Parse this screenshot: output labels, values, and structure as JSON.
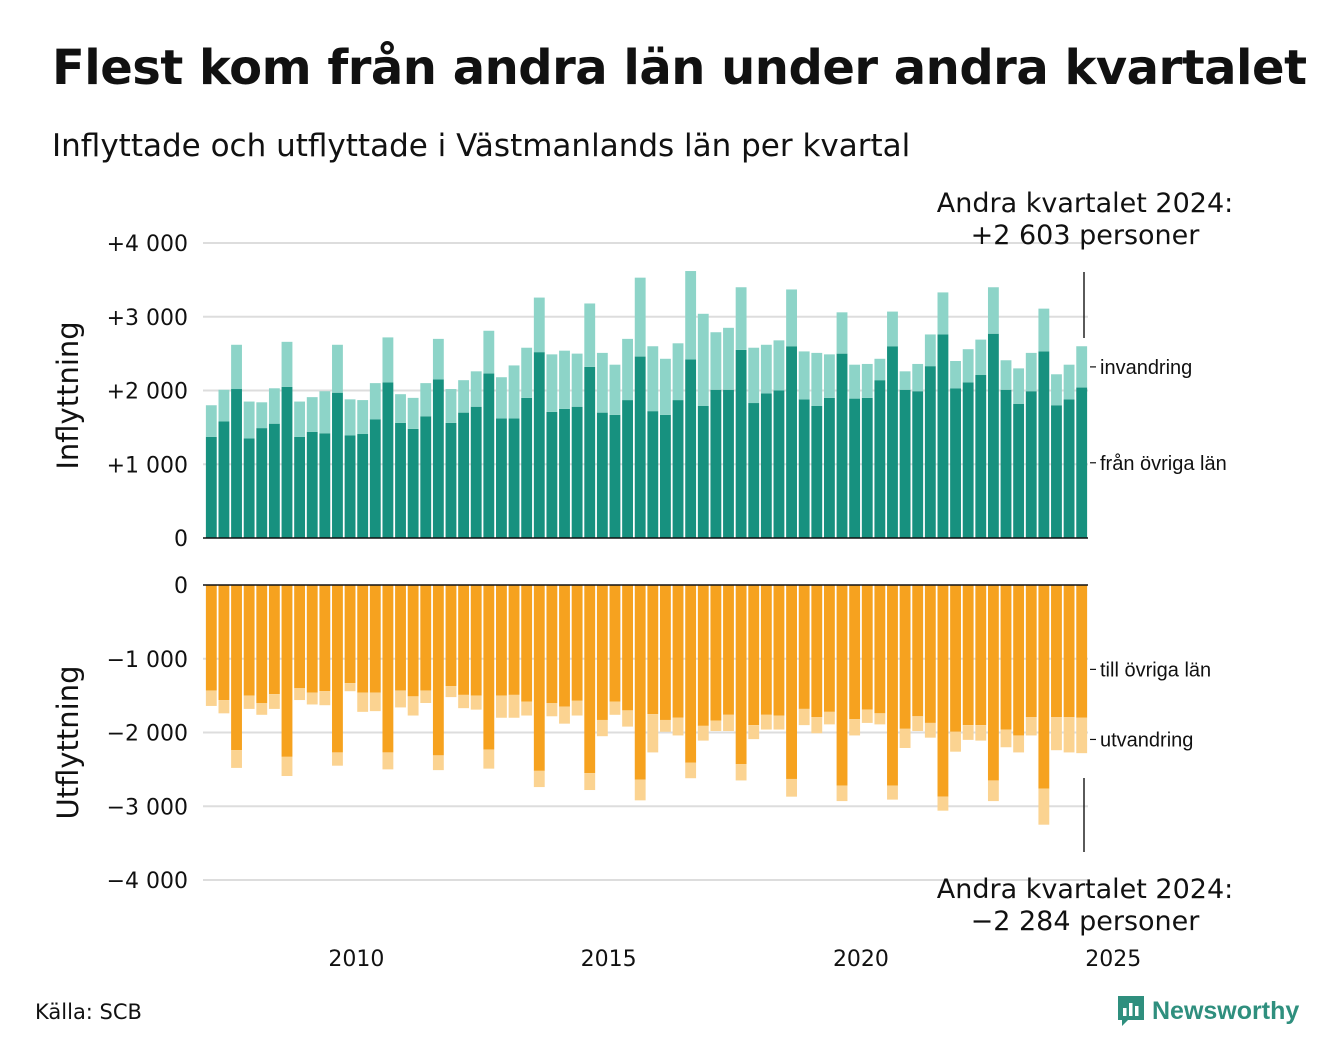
{
  "title": "Flest kom från andra län under andra kvartalet",
  "subtitle": "Inflyttade och utflyttade i Västmanlands län per kvartal",
  "source": "Källa: SCB",
  "logo_text": "Newsworthy",
  "annotations": {
    "top_line1": "Andra kvartalet 2024:",
    "top_line2": "+2 603 personer",
    "bottom_line1": "Andra kvartalet 2024:",
    "bottom_line2": "−2 284 personer"
  },
  "colors": {
    "from_other_counties": "#17917f",
    "immigration": "#8dd4c8",
    "to_other_counties": "#f6a21f",
    "emigration": "#fbd391",
    "gridline": "#dddddd"
  },
  "chart_data": {
    "type": "bar",
    "stacked": true,
    "x_ticks": [
      "2010",
      "2015",
      "2020",
      "2025"
    ],
    "panels": [
      {
        "ylabel": "Inflyttning",
        "ylim": [
          0,
          4000
        ],
        "y_ticks": [
          {
            "value": 0,
            "label": "0"
          },
          {
            "value": 1000,
            "label": "+1 000"
          },
          {
            "value": 2000,
            "label": "+2 000"
          },
          {
            "value": 3000,
            "label": "+3 000"
          },
          {
            "value": 4000,
            "label": "+4 000"
          }
        ],
        "series": [
          {
            "name": "från övriga län",
            "color": "#17917f",
            "values": [
              1370,
              1580,
              2020,
              1350,
              1490,
              1550,
              2050,
              1370,
              1440,
              1420,
              1970,
              1390,
              1410,
              1610,
              2110,
              1560,
              1480,
              1650,
              2150,
              1560,
              1700,
              1780,
              2230,
              1620,
              1620,
              1900,
              2520,
              1710,
              1750,
              1780,
              2320,
              1700,
              1670,
              1870,
              2460,
              1720,
              1670,
              1870,
              2420,
              1790,
              2010,
              2010,
              2550,
              1830,
              1960,
              2000,
              2600,
              1880,
              1790,
              1900,
              2500,
              1890,
              1900,
              2140,
              2600,
              2010,
              1990,
              2330,
              2760,
              2030,
              2110,
              2210,
              2770,
              2010,
              1820,
              1990,
              2530,
              1800,
              1880,
              2040
            ]
          },
          {
            "name": "invandring",
            "color": "#8dd4c8",
            "values": [
              430,
              430,
              600,
              500,
              350,
              480,
              610,
              480,
              470,
              570,
              650,
              490,
              460,
              490,
              610,
              390,
              420,
              450,
              550,
              460,
              440,
              480,
              580,
              560,
              720,
              680,
              740,
              780,
              790,
              720,
              860,
              810,
              680,
              830,
              1070,
              880,
              760,
              770,
              1200,
              1250,
              780,
              840,
              850,
              750,
              660,
              680,
              770,
              650,
              720,
              590,
              560,
              460,
              460,
              290,
              470,
              250,
              370,
              430,
              570,
              370,
              450,
              480,
              630,
              400,
              480,
              520,
              580,
              420,
              470,
              560
            ]
          }
        ]
      },
      {
        "ylabel": "Utflyttning",
        "ylim": [
          -4000,
          0
        ],
        "y_ticks": [
          {
            "value": 0,
            "label": "0"
          },
          {
            "value": -1000,
            "label": "−1 000"
          },
          {
            "value": -2000,
            "label": "−2 000"
          },
          {
            "value": -3000,
            "label": "−3 000"
          },
          {
            "value": -4000,
            "label": "−4 000"
          }
        ],
        "series": [
          {
            "name": "till övriga län",
            "color": "#f6a21f",
            "values": [
              -1430,
              -1560,
              -2240,
              -1500,
              -1600,
              -1480,
              -2330,
              -1400,
              -1460,
              -1440,
              -2270,
              -1330,
              -1460,
              -1460,
              -2270,
              -1430,
              -1510,
              -1430,
              -2310,
              -1370,
              -1490,
              -1500,
              -2230,
              -1500,
              -1490,
              -1580,
              -2520,
              -1600,
              -1650,
              -1570,
              -2550,
              -1830,
              -1580,
              -1700,
              -2640,
              -1750,
              -1830,
              -1800,
              -2410,
              -1910,
              -1840,
              -1760,
              -2430,
              -1900,
              -1760,
              -1770,
              -2630,
              -1680,
              -1790,
              -1720,
              -2720,
              -1820,
              -1690,
              -1740,
              -2720,
              -1950,
              -1780,
              -1870,
              -2870,
              -1990,
              -1900,
              -1900,
              -2650,
              -1960,
              -2040,
              -1790,
              -2760,
              -1790,
              -1790,
              -1800
            ]
          },
          {
            "name": "utvandring",
            "color": "#fbd391",
            "values": [
              -210,
              -180,
              -240,
              -180,
              -160,
              -200,
              -260,
              -160,
              -160,
              -190,
              -180,
              -110,
              -260,
              -250,
              -230,
              -230,
              -260,
              -170,
              -200,
              -150,
              -180,
              -190,
              -260,
              -300,
              -310,
              -190,
              -220,
              -180,
              -230,
              -200,
              -230,
              -220,
              -180,
              -220,
              -280,
              -520,
              -160,
              -240,
              -210,
              -200,
              -140,
              -220,
              -220,
              -190,
              -200,
              -190,
              -240,
              -220,
              -220,
              -170,
              -210,
              -220,
              -180,
              -150,
              -190,
              -260,
              -200,
              -200,
              -190,
              -270,
              -200,
              -210,
              -280,
              -240,
              -230,
              -250,
              -490,
              -450,
              -480,
              -480
            ]
          }
        ]
      }
    ]
  }
}
